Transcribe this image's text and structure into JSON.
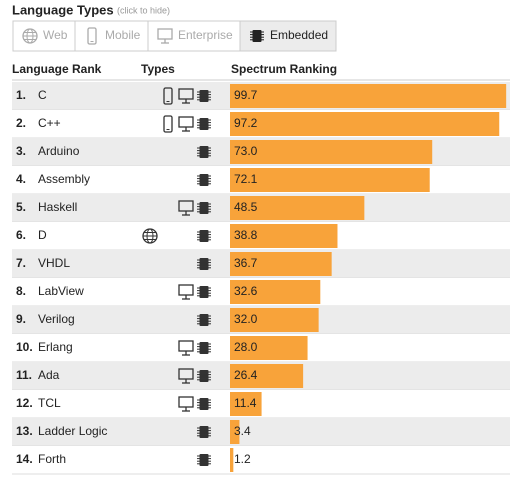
{
  "filter": {
    "title": "Language Types",
    "hint": "(click to hide)",
    "buttons": [
      {
        "label": "Web",
        "icon": "web",
        "active": false
      },
      {
        "label": "Mobile",
        "icon": "mobile",
        "active": false
      },
      {
        "label": "Enterprise",
        "icon": "enterprise",
        "active": false
      },
      {
        "label": "Embedded",
        "icon": "embedded",
        "active": true
      }
    ]
  },
  "table": {
    "headers": [
      "Language Rank",
      "Types",
      "Spectrum Ranking"
    ],
    "rows": [
      {
        "rank": "1.",
        "name": "C",
        "types": [
          "mobile",
          "enterprise",
          "embedded"
        ]
      },
      {
        "rank": "2.",
        "name": "C++",
        "types": [
          "mobile",
          "enterprise",
          "embedded"
        ]
      },
      {
        "rank": "3.",
        "name": "Arduino",
        "types": [
          "embedded"
        ]
      },
      {
        "rank": "4.",
        "name": "Assembly",
        "types": [
          "embedded"
        ]
      },
      {
        "rank": "5.",
        "name": "Haskell",
        "types": [
          "enterprise",
          "embedded"
        ]
      },
      {
        "rank": "6.",
        "name": "D",
        "types": [
          "web",
          "embedded"
        ]
      },
      {
        "rank": "7.",
        "name": "VHDL",
        "types": [
          "embedded"
        ]
      },
      {
        "rank": "8.",
        "name": "LabView",
        "types": [
          "enterprise",
          "embedded"
        ]
      },
      {
        "rank": "9.",
        "name": "Verilog",
        "types": [
          "embedded"
        ]
      },
      {
        "rank": "10.",
        "name": "Erlang",
        "types": [
          "enterprise",
          "embedded"
        ]
      },
      {
        "rank": "11.",
        "name": "Ada",
        "types": [
          "enterprise",
          "embedded"
        ]
      },
      {
        "rank": "12.",
        "name": "TCL",
        "types": [
          "enterprise",
          "embedded"
        ]
      },
      {
        "rank": "13.",
        "name": "Ladder Logic",
        "types": [
          "embedded"
        ]
      },
      {
        "rank": "14.",
        "name": "Forth",
        "types": [
          "embedded"
        ]
      }
    ],
    "values": [
      99.7,
      97.2,
      73,
      72.1,
      48.5,
      38.8,
      36.7,
      32.6,
      32,
      28,
      26.4,
      11.4,
      3.4,
      1.2
    ],
    "value_labels": [
      "99.7",
      "97.2",
      "73.0",
      "72.1",
      "48.5",
      "38.8",
      "36.7",
      "32.6",
      "32.0",
      "28.0",
      "26.4",
      "11.4",
      "3.4",
      "1.2"
    ],
    "xlim": [
      0,
      100
    ],
    "bar_color": "#f8a33a"
  }
}
